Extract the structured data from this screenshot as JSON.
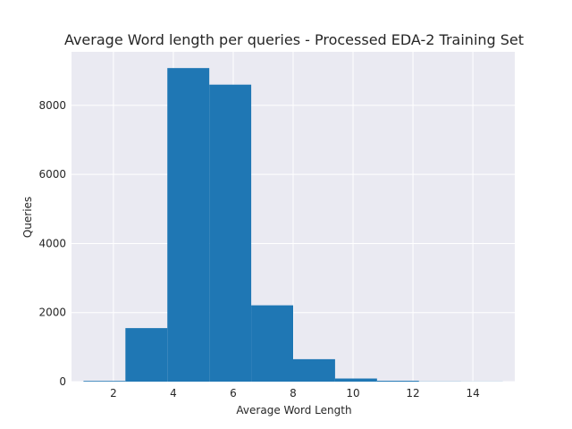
{
  "chart_data": {
    "type": "bar",
    "subtype": "histogram",
    "title": "Average Word length per queries - Processed EDA-2 Training Set",
    "xlabel": "Average Word Length",
    "ylabel": "Queries",
    "xlim": [
      0.6,
      15.4
    ],
    "ylim": [
      0,
      9550
    ],
    "x_ticks": [
      2,
      4,
      6,
      8,
      10,
      12,
      14
    ],
    "y_ticks": [
      0,
      2000,
      4000,
      6000,
      8000
    ],
    "grid": true,
    "bin_edges": [
      1.0,
      2.4,
      3.8,
      5.2,
      6.6,
      8.0,
      9.4,
      10.8,
      12.2,
      13.6,
      15.0
    ],
    "values": [
      20,
      1550,
      9080,
      8600,
      2210,
      650,
      90,
      25,
      5,
      3
    ],
    "bar_color": "#1f77b4",
    "background_color": "#eaeaf2",
    "grid_color": "#ffffff"
  }
}
